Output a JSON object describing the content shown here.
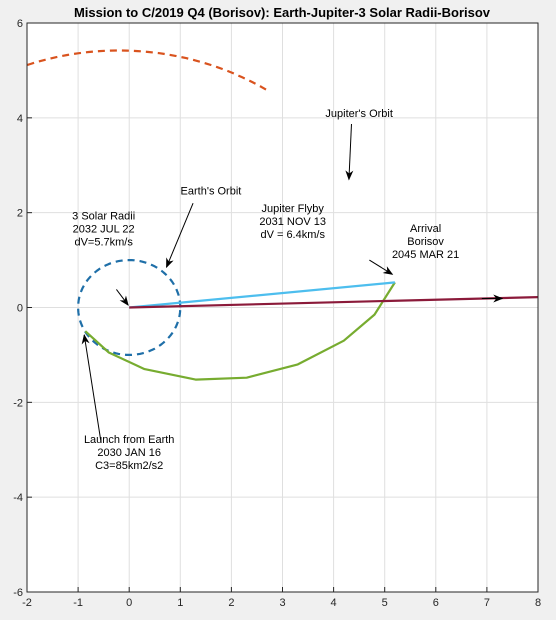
{
  "chart_data": {
    "type": "line",
    "title": "Mission to C/2019 Q4 (Borisov): Earth-Jupiter-3 Solar Radii-Borisov",
    "xlabel": "",
    "ylabel": "",
    "xlim": [
      -2,
      8
    ],
    "ylim": [
      -6,
      6
    ],
    "x_ticks": [
      -2,
      -1,
      0,
      1,
      2,
      3,
      4,
      5,
      6,
      7,
      8
    ],
    "y_ticks": [
      -6,
      -4,
      -2,
      0,
      2,
      4,
      6
    ],
    "grid": true,
    "colors": {
      "earth_orbit": "#1f6fa8",
      "jupiter_orbit": "#d9531e",
      "transfer": "#77ac30",
      "sun_leg": "#4dbeee",
      "escape": "#8b1a3a",
      "arrow": "#000000"
    },
    "series": [
      {
        "kind": "circle",
        "style": "dashed",
        "center": [
          0,
          0
        ],
        "radius": 1.0,
        "color": "#1f6fa8"
      },
      {
        "kind": "ellipse",
        "style": "dashed",
        "center": [
          -0.2,
          0
        ],
        "a": 5.43,
        "b": 5.42,
        "theta_deg": [
          58,
          238
        ],
        "color": "#d9531e"
      },
      {
        "kind": "polyline",
        "style": "solid",
        "points": [
          [
            -0.86,
            -0.5
          ],
          [
            -0.4,
            -0.95
          ],
          [
            0.3,
            -1.3
          ],
          [
            1.3,
            -1.52
          ],
          [
            2.3,
            -1.48
          ],
          [
            3.3,
            -1.2
          ],
          [
            4.2,
            -0.7
          ],
          [
            4.8,
            -0.15
          ],
          [
            5.2,
            0.53
          ]
        ],
        "color": "#77ac30"
      },
      {
        "kind": "polyline",
        "style": "solid",
        "points": [
          [
            0,
            0
          ],
          [
            5.2,
            0.53
          ]
        ],
        "color": "#4dbeee"
      },
      {
        "kind": "polyline",
        "style": "solid",
        "points": [
          [
            0,
            0
          ],
          [
            8,
            0.22
          ]
        ],
        "color": "#8b1a3a"
      }
    ],
    "annotations": [
      {
        "lines": [
          "3 Solar Radii",
          "2032 JUL 22",
          "dV=5.7km/s"
        ],
        "text_at": [
          -0.5,
          1.67
        ],
        "arrow_from": [
          -0.25,
          0.38
        ],
        "arrow_to": [
          -0.02,
          0.05
        ]
      },
      {
        "lines": [
          "Earth's Orbit"
        ],
        "text_at": [
          1.6,
          2.47
        ],
        "arrow_from": [
          1.25,
          2.2
        ],
        "arrow_to": [
          0.73,
          0.85
        ]
      },
      {
        "lines": [
          "Jupiter's Orbit"
        ],
        "text_at": [
          4.5,
          4.1
        ],
        "arrow_from": [
          4.35,
          3.87
        ],
        "arrow_to": [
          4.3,
          2.7
        ]
      },
      {
        "lines": [
          "Jupiter Flyby",
          "2031 NOV 13",
          "dV = 6.4km/s"
        ],
        "text_at": [
          3.2,
          1.82
        ],
        "arrow_from": [
          4.7,
          1.0
        ],
        "arrow_to": [
          5.15,
          0.7
        ]
      },
      {
        "lines": [
          "Arrival",
          "Borisov",
          "2045 MAR 21"
        ],
        "text_at": [
          5.8,
          1.4
        ],
        "arrow_from": [
          6.9,
          0.19
        ],
        "arrow_to": [
          7.3,
          0.19
        ]
      },
      {
        "lines": [
          "Launch from Earth",
          "2030 JAN 16",
          "C3=85km2/s2"
        ],
        "text_at": [
          0.0,
          -3.05
        ],
        "arrow_from": [
          -0.55,
          -2.85
        ],
        "arrow_to": [
          -0.88,
          -0.58
        ]
      }
    ]
  }
}
